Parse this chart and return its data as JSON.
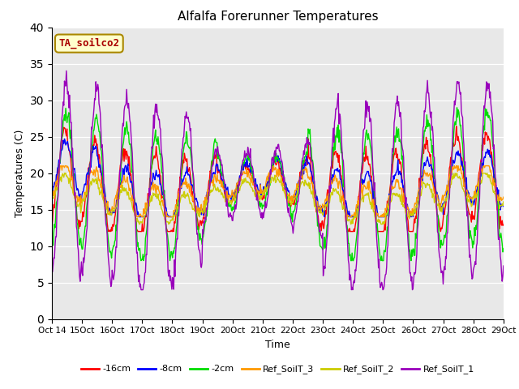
{
  "title": "Alfalfa Forerunner Temperatures",
  "xlabel": "Time",
  "ylabel": "Temperatures (C)",
  "ylim": [
    0,
    40
  ],
  "yticks": [
    0,
    5,
    10,
    15,
    20,
    25,
    30,
    35,
    40
  ],
  "annotation": "TA_soilco2",
  "annotation_color": "#aa0000",
  "annotation_bg": "#ffffcc",
  "annotation_edge": "#aa8800",
  "bg_color": "#e8e8e8",
  "legend_labels": [
    "-16cm",
    "-8cm",
    "-2cm",
    "Ref_SoilT_3",
    "Ref_SoilT_2",
    "Ref_SoilT_1"
  ],
  "line_colors": [
    "#ff0000",
    "#0000ff",
    "#00dd00",
    "#ff9900",
    "#cccc00",
    "#9900bb"
  ],
  "n_days": 15,
  "points_per_day": 48,
  "start_day": 14
}
